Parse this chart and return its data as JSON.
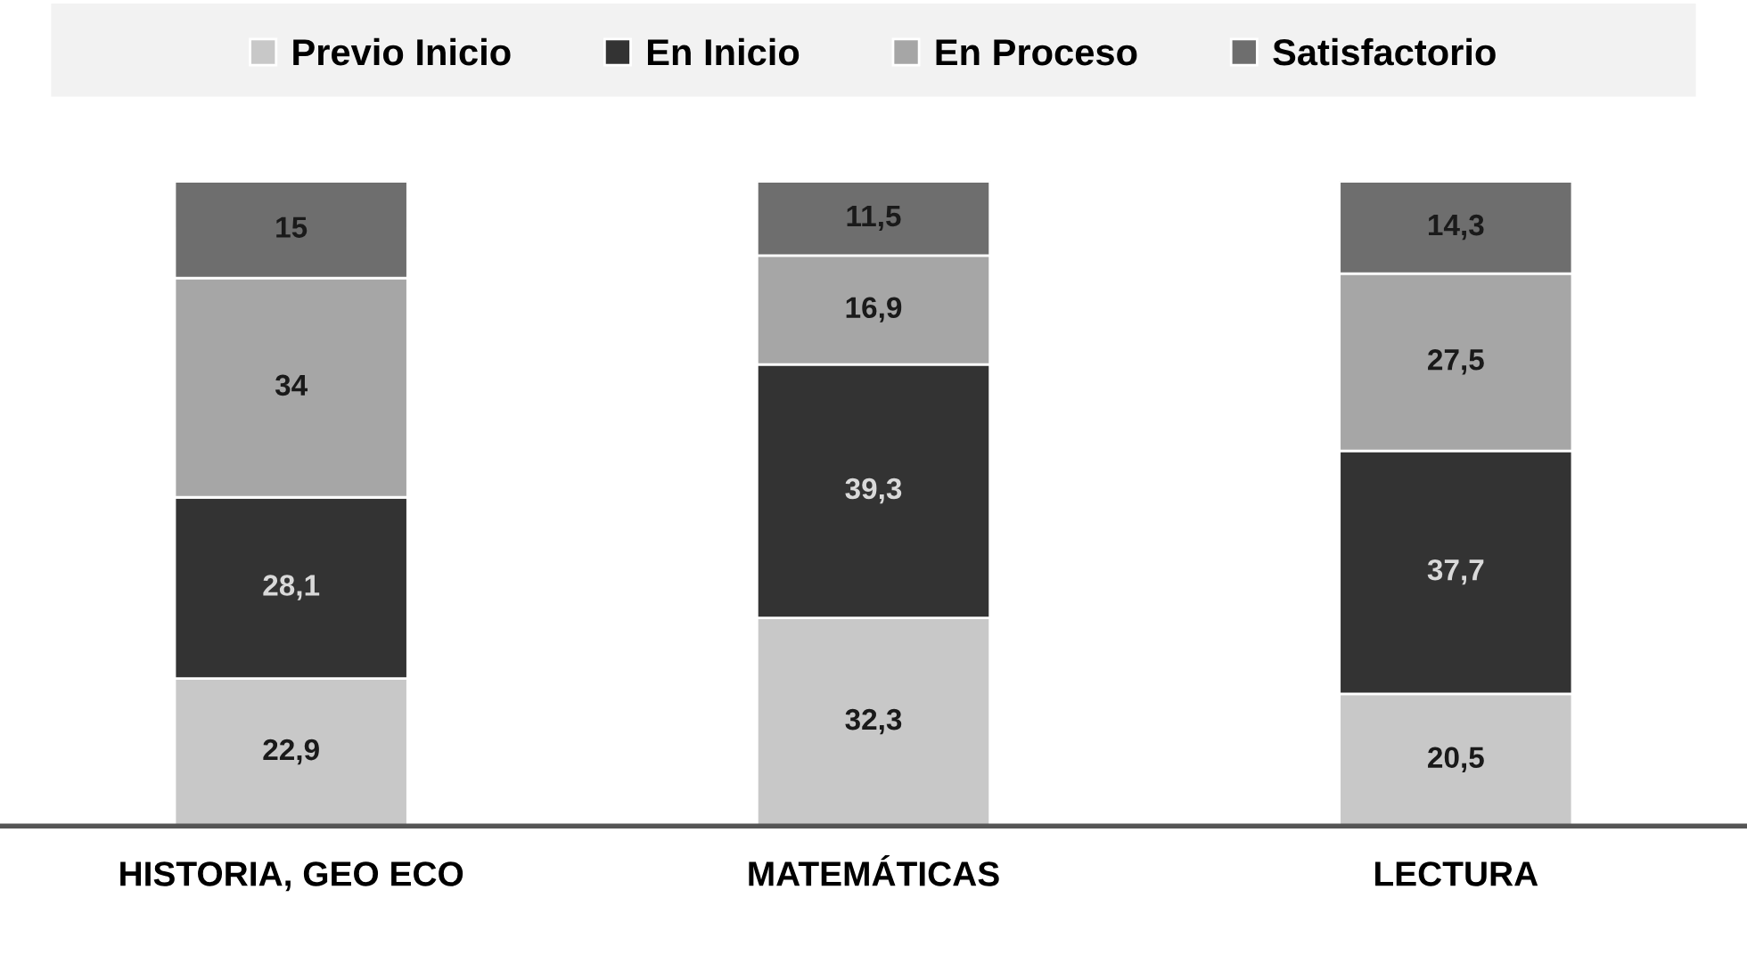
{
  "chart_data": {
    "type": "bar",
    "stacked": true,
    "categories": [
      "HISTORIA, GEO ECO",
      "MATEMÁTICAS",
      "LECTURA"
    ],
    "series": [
      {
        "name": "Previo Inicio",
        "color": "#c8c8c8",
        "values": [
          22.9,
          32.3,
          20.5
        ],
        "value_labels": [
          "22,9",
          "32,3",
          "20,5"
        ]
      },
      {
        "name": "En Inicio",
        "color": "#333333",
        "values": [
          28.1,
          39.3,
          37.7
        ],
        "value_labels": [
          "28,1",
          "39,3",
          "37,7"
        ]
      },
      {
        "name": "En Proceso",
        "color": "#a6a6a6",
        "values": [
          34,
          16.9,
          27.5
        ],
        "value_labels": [
          "34",
          "16,9",
          "27,5"
        ]
      },
      {
        "name": "Satisfactorio",
        "color": "#6e6e6e",
        "values": [
          15,
          11.5,
          14.3
        ],
        "value_labels": [
          "15",
          "11,5",
          "14,3"
        ]
      }
    ],
    "legend": "top",
    "grid": false,
    "tick_labels": "x"
  }
}
